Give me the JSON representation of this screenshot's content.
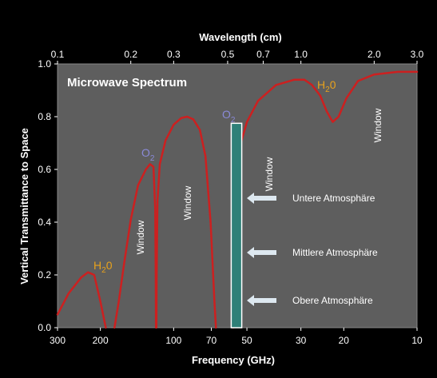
{
  "chart_data": {
    "type": "line",
    "title": "Microwave Spectrum",
    "ylabel": "Vertical Transmittance to Space",
    "xlabel_bottom": "Frequency (GHz)",
    "xlabel_top": "Wavelength (cm)",
    "x_scale": "log",
    "x_reversed": true,
    "xlim": [
      300,
      10
    ],
    "ylim": [
      0,
      1.0
    ],
    "grid": false,
    "yticks": [
      "0.0",
      "0.2",
      "0.4",
      "0.6",
      "0.8",
      "1.0"
    ],
    "xticks_bottom": [
      {
        "label": "300",
        "freq": 300
      },
      {
        "label": "200",
        "freq": 200
      },
      {
        "label": "100",
        "freq": 100
      },
      {
        "label": "70",
        "freq": 70
      },
      {
        "label": "50",
        "freq": 50
      },
      {
        "label": "30",
        "freq": 30
      },
      {
        "label": "20",
        "freq": 20
      },
      {
        "label": "10",
        "freq": 10
      }
    ],
    "xticks_top": [
      {
        "label": "0.1",
        "cm": 0.1
      },
      {
        "label": "0.2",
        "cm": 0.2
      },
      {
        "label": "0.3",
        "cm": 0.3
      },
      {
        "label": "0.5",
        "cm": 0.5
      },
      {
        "label": "0.7",
        "cm": 0.7
      },
      {
        "label": "1.0",
        "cm": 1.0
      },
      {
        "label": "2.0",
        "cm": 2.0
      },
      {
        "label": "3.0",
        "cm": 3.0
      }
    ],
    "series": [
      {
        "segments": [
          [
            [
              300,
              0.05
            ],
            [
              270,
              0.13
            ],
            [
              240,
              0.19
            ],
            [
              225,
              0.21
            ],
            [
              212,
              0.2
            ],
            [
              200,
              0.1
            ],
            [
              190,
              0.0
            ]
          ],
          [
            [
              175,
              0.0
            ],
            [
              168,
              0.1
            ],
            [
              160,
              0.24
            ],
            [
              150,
              0.41
            ],
            [
              140,
              0.54
            ],
            [
              130,
              0.6
            ],
            [
              125,
              0.62
            ],
            [
              121,
              0.61
            ],
            [
              119,
              0.45
            ],
            [
              118.5,
              0.2
            ],
            [
              118.2,
              0.0
            ]
          ],
          [
            [
              117.7,
              0.0
            ],
            [
              117.4,
              0.2
            ],
            [
              116.5,
              0.48
            ],
            [
              114,
              0.62
            ],
            [
              108,
              0.71
            ],
            [
              100,
              0.77
            ],
            [
              93,
              0.795
            ],
            [
              88,
              0.8
            ],
            [
              83,
              0.79
            ],
            [
              78,
              0.75
            ],
            [
              74,
              0.65
            ],
            [
              70.5,
              0.4
            ],
            [
              68,
              0.1
            ],
            [
              67,
              0.0
            ]
          ],
          [
            [
              57,
              0.0
            ],
            [
              56,
              0.3
            ],
            [
              54.5,
              0.63
            ],
            [
              53,
              0.7
            ],
            [
              50,
              0.78
            ],
            [
              45,
              0.86
            ],
            [
              38,
              0.92
            ],
            [
              32,
              0.94
            ],
            [
              29,
              0.94
            ],
            [
              27,
              0.92
            ],
            [
              25,
              0.88
            ],
            [
              23.5,
              0.82
            ],
            [
              22.2,
              0.78
            ],
            [
              21,
              0.8
            ],
            [
              19.5,
              0.87
            ],
            [
              17.5,
              0.935
            ],
            [
              15,
              0.96
            ],
            [
              12,
              0.97
            ],
            [
              10,
              0.97
            ]
          ]
        ],
        "color": "#cc2020"
      }
    ],
    "annotations": {
      "region_labels": [
        "Window",
        "Window",
        "Window",
        "Window"
      ],
      "absorption_labels": [
        {
          "text": "H",
          "sub": "2",
          "suffix": "0",
          "color": "#e8a21c"
        },
        {
          "text": "O",
          "sub": "2",
          "suffix": "",
          "color": "#8a8ad8"
        },
        {
          "text": "O",
          "sub": "2",
          "suffix": "",
          "color": "#8a8ad8"
        },
        {
          "text": "H",
          "sub": "2",
          "suffix": "0",
          "color": "#e8a21c"
        }
      ],
      "band_arrows": [
        "Untere Atmosphäre",
        "Mittlere Atmosphäre",
        "Obere Atmosphäre"
      ]
    },
    "colors": {
      "background": "#000000",
      "plot_area": "#5e5e5e",
      "curve": "#cc2020",
      "band": "#2f8078",
      "band_border": "#ffffff",
      "text": "#ffffff",
      "arrow": "#dde8f0"
    }
  }
}
